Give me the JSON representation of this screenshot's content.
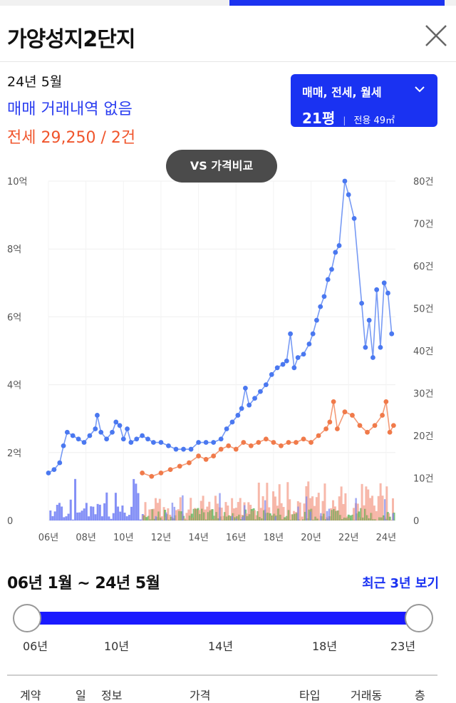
{
  "header": {
    "title": "가양성지2단지"
  },
  "summary": {
    "year_month": "24년 5월",
    "sale_text": "매매 거래내역 없음",
    "jeonse_text": "전세 29,250 / 2건"
  },
  "type_selector": {
    "types": "매매, 전세, 월세",
    "pyeong": "21평",
    "area": "전용 49㎡"
  },
  "compare_button": {
    "label": "VS 가격비교"
  },
  "chart_data": {
    "type": "line",
    "left_axis_ticks": [
      "10억",
      "8억",
      "6억",
      "4억",
      "2억",
      "0"
    ],
    "right_axis_ticks": [
      "80건",
      "70건",
      "60건",
      "50건",
      "40건",
      "30건",
      "20건",
      "10건",
      "0"
    ],
    "x_ticks": [
      "06년",
      "08년",
      "10년",
      "12년",
      "14년",
      "16년",
      "18년",
      "20년",
      "22년",
      "24년"
    ],
    "left_range": [
      0,
      10
    ],
    "right_range": [
      0,
      80
    ],
    "x_range": [
      2006.0,
      2024.5
    ],
    "series": [
      {
        "color": "#4a78f0",
        "points": [
          [
            2006.0,
            1.4
          ],
          [
            2006.3,
            1.5
          ],
          [
            2006.6,
            1.7
          ],
          [
            2006.8,
            2.2
          ],
          [
            2007.0,
            2.6
          ],
          [
            2007.3,
            2.5
          ],
          [
            2007.6,
            2.4
          ],
          [
            2007.9,
            2.3
          ],
          [
            2008.2,
            2.5
          ],
          [
            2008.5,
            2.7
          ],
          [
            2008.6,
            3.1
          ],
          [
            2008.8,
            2.6
          ],
          [
            2009.1,
            2.4
          ],
          [
            2009.4,
            2.6
          ],
          [
            2009.6,
            2.9
          ],
          [
            2009.8,
            2.8
          ],
          [
            2010.0,
            2.4
          ],
          [
            2010.2,
            2.7
          ],
          [
            2010.4,
            2.3
          ],
          [
            2010.7,
            2.4
          ],
          [
            2011.0,
            2.5
          ],
          [
            2011.3,
            2.4
          ],
          [
            2011.6,
            2.3
          ],
          [
            2012.0,
            2.3
          ],
          [
            2012.4,
            2.2
          ],
          [
            2012.8,
            2.1
          ],
          [
            2013.2,
            2.1
          ],
          [
            2013.6,
            2.1
          ],
          [
            2014.0,
            2.3
          ],
          [
            2014.4,
            2.3
          ],
          [
            2014.8,
            2.3
          ],
          [
            2015.2,
            2.4
          ],
          [
            2015.5,
            2.7
          ],
          [
            2015.8,
            2.9
          ],
          [
            2016.1,
            3.1
          ],
          [
            2016.3,
            3.3
          ],
          [
            2016.5,
            3.9
          ],
          [
            2016.7,
            3.4
          ],
          [
            2017.0,
            3.6
          ],
          [
            2017.3,
            3.8
          ],
          [
            2017.6,
            4.0
          ],
          [
            2017.9,
            4.3
          ],
          [
            2018.2,
            4.5
          ],
          [
            2018.5,
            4.6
          ],
          [
            2018.7,
            4.7
          ],
          [
            2018.9,
            5.5
          ],
          [
            2019.1,
            4.5
          ],
          [
            2019.3,
            4.8
          ],
          [
            2019.6,
            4.9
          ],
          [
            2019.9,
            5.2
          ],
          [
            2020.1,
            5.5
          ],
          [
            2020.3,
            5.9
          ],
          [
            2020.5,
            6.3
          ],
          [
            2020.7,
            6.6
          ],
          [
            2020.9,
            7.1
          ],
          [
            2021.1,
            7.4
          ],
          [
            2021.3,
            7.9
          ],
          [
            2021.5,
            8.1
          ],
          [
            2021.8,
            10.0
          ],
          [
            2022.0,
            9.6
          ],
          [
            2022.3,
            8.9
          ],
          [
            2022.7,
            6.4
          ],
          [
            2022.9,
            5.1
          ],
          [
            2023.1,
            5.9
          ],
          [
            2023.3,
            4.8
          ],
          [
            2023.5,
            6.8
          ],
          [
            2023.7,
            5.1
          ],
          [
            2023.9,
            7.0
          ],
          [
            2024.1,
            6.7
          ],
          [
            2024.3,
            5.5
          ]
        ]
      },
      {
        "color": "#f07a4a",
        "points": [
          [
            2011.0,
            1.4
          ],
          [
            2011.5,
            1.3
          ],
          [
            2012.0,
            1.4
          ],
          [
            2012.5,
            1.5
          ],
          [
            2013.0,
            1.6
          ],
          [
            2013.5,
            1.7
          ],
          [
            2014.0,
            1.9
          ],
          [
            2014.4,
            1.8
          ],
          [
            2014.8,
            1.9
          ],
          [
            2015.2,
            2.1
          ],
          [
            2015.6,
            2.2
          ],
          [
            2016.0,
            2.1
          ],
          [
            2016.4,
            2.3
          ],
          [
            2016.8,
            2.2
          ],
          [
            2017.2,
            2.3
          ],
          [
            2017.6,
            2.4
          ],
          [
            2018.0,
            2.3
          ],
          [
            2018.4,
            2.2
          ],
          [
            2018.8,
            2.3
          ],
          [
            2019.2,
            2.3
          ],
          [
            2019.6,
            2.4
          ],
          [
            2020.0,
            2.3
          ],
          [
            2020.4,
            2.5
          ],
          [
            2020.8,
            2.7
          ],
          [
            2021.0,
            2.9
          ],
          [
            2021.2,
            3.5
          ],
          [
            2021.4,
            2.7
          ],
          [
            2021.8,
            3.2
          ],
          [
            2022.2,
            3.1
          ],
          [
            2022.6,
            2.8
          ],
          [
            2023.0,
            2.6
          ],
          [
            2023.4,
            2.8
          ],
          [
            2023.8,
            3.1
          ],
          [
            2024.0,
            3.5
          ],
          [
            2024.2,
            2.6
          ],
          [
            2024.4,
            2.8
          ]
        ]
      }
    ]
  },
  "period": {
    "range_text": "06년 1월 ~ 24년 5월",
    "recent_link": "최근 3년 보기",
    "slider_labels": [
      "06년",
      "10년",
      "14년",
      "18년",
      "23년"
    ]
  },
  "table": {
    "columns": [
      "계약",
      "일",
      "정보",
      "가격",
      "타입",
      "거래동",
      "층"
    ]
  }
}
